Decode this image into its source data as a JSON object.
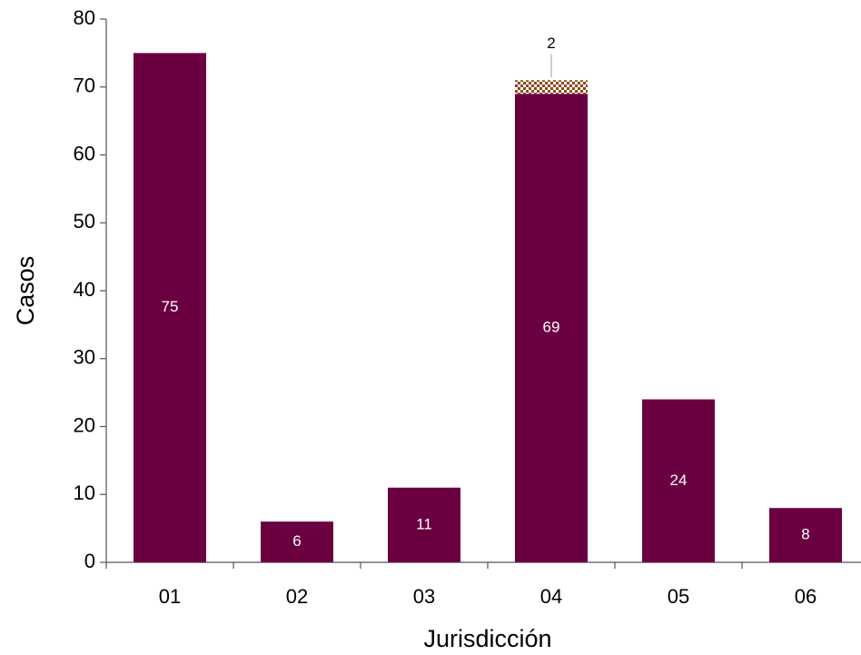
{
  "chart_data": {
    "type": "bar",
    "stacked": true,
    "x_label": "Jurisdicción",
    "y_label": "Casos",
    "categories": [
      "01",
      "02",
      "03",
      "04",
      "05",
      "06"
    ],
    "series": [
      {
        "color": "#6b0040",
        "values": [
          75,
          6,
          11,
          69,
          24,
          8
        ]
      },
      {
        "color": "#8b4a1a",
        "pattern": "checker",
        "values": [
          null,
          null,
          null,
          2,
          null,
          null
        ]
      }
    ],
    "ylim": [
      0,
      80
    ],
    "yticks": [
      0,
      10,
      20,
      30,
      40,
      50,
      60,
      70,
      80
    ],
    "grid": false
  }
}
